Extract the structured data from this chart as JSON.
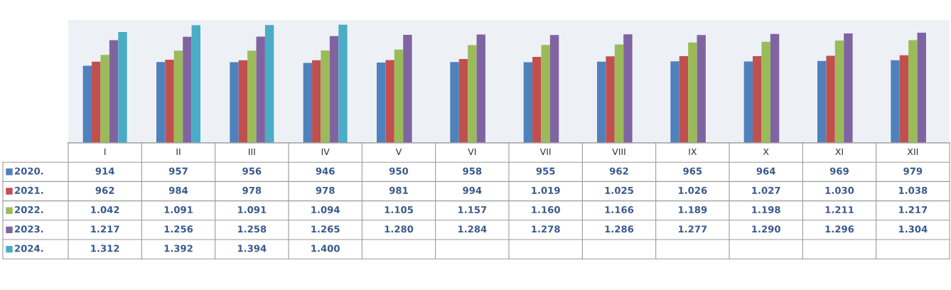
{
  "chart_data": {
    "type": "bar",
    "categories": [
      "I",
      "II",
      "III",
      "IV",
      "V",
      "VI",
      "VII",
      "VIII",
      "IX",
      "X",
      "XI",
      "XII"
    ],
    "series": [
      {
        "name": "2020.",
        "color": "#4f81bd",
        "values": [
          914,
          957,
          956,
          946,
          950,
          958,
          955,
          962,
          965,
          964,
          969,
          979
        ],
        "value_labels": [
          "914",
          "957",
          "956",
          "946",
          "950",
          "958",
          "955",
          "962",
          "965",
          "964",
          "969",
          "979"
        ]
      },
      {
        "name": "2021.",
        "color": "#c0504d",
        "values": [
          962,
          984,
          978,
          978,
          981,
          994,
          1019,
          1025,
          1026,
          1027,
          1030,
          1038
        ],
        "value_labels": [
          "962",
          "984",
          "978",
          "978",
          "981",
          "994",
          "1.019",
          "1.025",
          "1.026",
          "1.027",
          "1.030",
          "1.038"
        ]
      },
      {
        "name": "2022.",
        "color": "#9bbb59",
        "values": [
          1042,
          1091,
          1091,
          1094,
          1105,
          1157,
          1160,
          1166,
          1189,
          1198,
          1211,
          1217
        ],
        "value_labels": [
          "1.042",
          "1.091",
          "1.091",
          "1.094",
          "1.105",
          "1.157",
          "1.160",
          "1.166",
          "1.189",
          "1.198",
          "1.211",
          "1.217"
        ]
      },
      {
        "name": "2023.",
        "color": "#8064a2",
        "values": [
          1217,
          1256,
          1258,
          1265,
          1280,
          1284,
          1278,
          1286,
          1277,
          1290,
          1296,
          1304
        ],
        "value_labels": [
          "1.217",
          "1.256",
          "1.258",
          "1.265",
          "1.280",
          "1.284",
          "1.278",
          "1.286",
          "1.277",
          "1.290",
          "1.296",
          "1.304"
        ]
      },
      {
        "name": "2024.",
        "color": "#4bacc6",
        "values": [
          1312,
          1392,
          1394,
          1400,
          null,
          null,
          null,
          null,
          null,
          null,
          null,
          null
        ],
        "value_labels": [
          "1.312",
          "1.392",
          "1.394",
          "1.400",
          null,
          null,
          null,
          null,
          null,
          null,
          null,
          null
        ]
      }
    ],
    "legend": "left",
    "grid": false
  }
}
